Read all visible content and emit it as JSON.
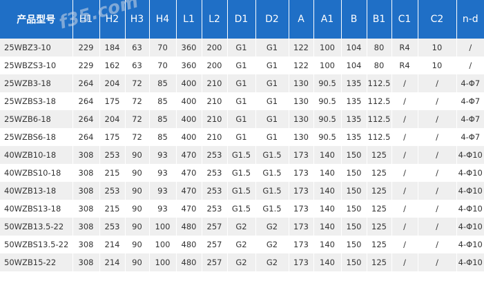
{
  "watermark_primary": "f35.com",
  "watermark_secondary": "@@",
  "table": {
    "headers": [
      "产品型号",
      "H1",
      "H2",
      "H3",
      "H4",
      "L1",
      "L2",
      "D1",
      "D2",
      "A",
      "A1",
      "B",
      "B1",
      "C1",
      "C2",
      "n-d"
    ],
    "rows": [
      [
        "25WBZ3-10",
        "229",
        "184",
        "63",
        "70",
        "360",
        "200",
        "G1",
        "G1",
        "122",
        "100",
        "104",
        "80",
        "R4",
        "10",
        "/"
      ],
      [
        "25WBZS3-10",
        "229",
        "162",
        "63",
        "70",
        "360",
        "200",
        "G1",
        "G1",
        "122",
        "100",
        "104",
        "80",
        "R4",
        "10",
        "/"
      ],
      [
        "25WZB3-18",
        "264",
        "204",
        "72",
        "85",
        "400",
        "210",
        "G1",
        "G1",
        "130",
        "90.5",
        "135",
        "112.5",
        "/",
        "/",
        "4-Φ7"
      ],
      [
        "25WZBS3-18",
        "264",
        "175",
        "72",
        "85",
        "400",
        "210",
        "G1",
        "G1",
        "130",
        "90.5",
        "135",
        "112.5",
        "/",
        "/",
        "4-Φ7"
      ],
      [
        "25WZB6-18",
        "264",
        "204",
        "72",
        "85",
        "400",
        "210",
        "G1",
        "G1",
        "130",
        "90.5",
        "135",
        "112.5",
        "/",
        "/",
        "4-Φ7"
      ],
      [
        "25WZBS6-18",
        "264",
        "175",
        "72",
        "85",
        "400",
        "210",
        "G1",
        "G1",
        "130",
        "90.5",
        "135",
        "112.5",
        "/",
        "/",
        "4-Φ7"
      ],
      [
        "40WZB10-18",
        "308",
        "253",
        "90",
        "93",
        "470",
        "253",
        "G1.5",
        "G1.5",
        "173",
        "140",
        "150",
        "125",
        "/",
        "/",
        "4-Φ10"
      ],
      [
        "40WZBS10-18",
        "308",
        "215",
        "90",
        "93",
        "470",
        "253",
        "G1.5",
        "G1.5",
        "173",
        "140",
        "150",
        "125",
        "/",
        "/",
        "4-Φ10"
      ],
      [
        "40WZB13-18",
        "308",
        "253",
        "90",
        "93",
        "470",
        "253",
        "G1.5",
        "G1.5",
        "173",
        "140",
        "150",
        "125",
        "/",
        "/",
        "4-Φ10"
      ],
      [
        "40WZBS13-18",
        "308",
        "215",
        "90",
        "93",
        "470",
        "253",
        "G1.5",
        "G1.5",
        "173",
        "140",
        "150",
        "125",
        "/",
        "/",
        "4-Φ10"
      ],
      [
        "50WZB13.5-22",
        "308",
        "253",
        "90",
        "100",
        "480",
        "257",
        "G2",
        "G2",
        "173",
        "140",
        "150",
        "125",
        "/",
        "/",
        "4-Φ10"
      ],
      [
        "50WZBS13.5-22",
        "308",
        "214",
        "90",
        "100",
        "480",
        "257",
        "G2",
        "G2",
        "173",
        "140",
        "150",
        "125",
        "/",
        "/",
        "4-Φ10"
      ],
      [
        "50WZB15-22",
        "308",
        "214",
        "90",
        "100",
        "480",
        "257",
        "G2",
        "G2",
        "173",
        "140",
        "150",
        "125",
        "/",
        "/",
        "4-Φ10"
      ]
    ]
  },
  "colors": {
    "header_bg": "#1f6fc6",
    "header_text": "#ffffff",
    "row_odd_bg": "#efefef",
    "row_even_bg": "#ffffff",
    "cell_text": "#333333"
  }
}
